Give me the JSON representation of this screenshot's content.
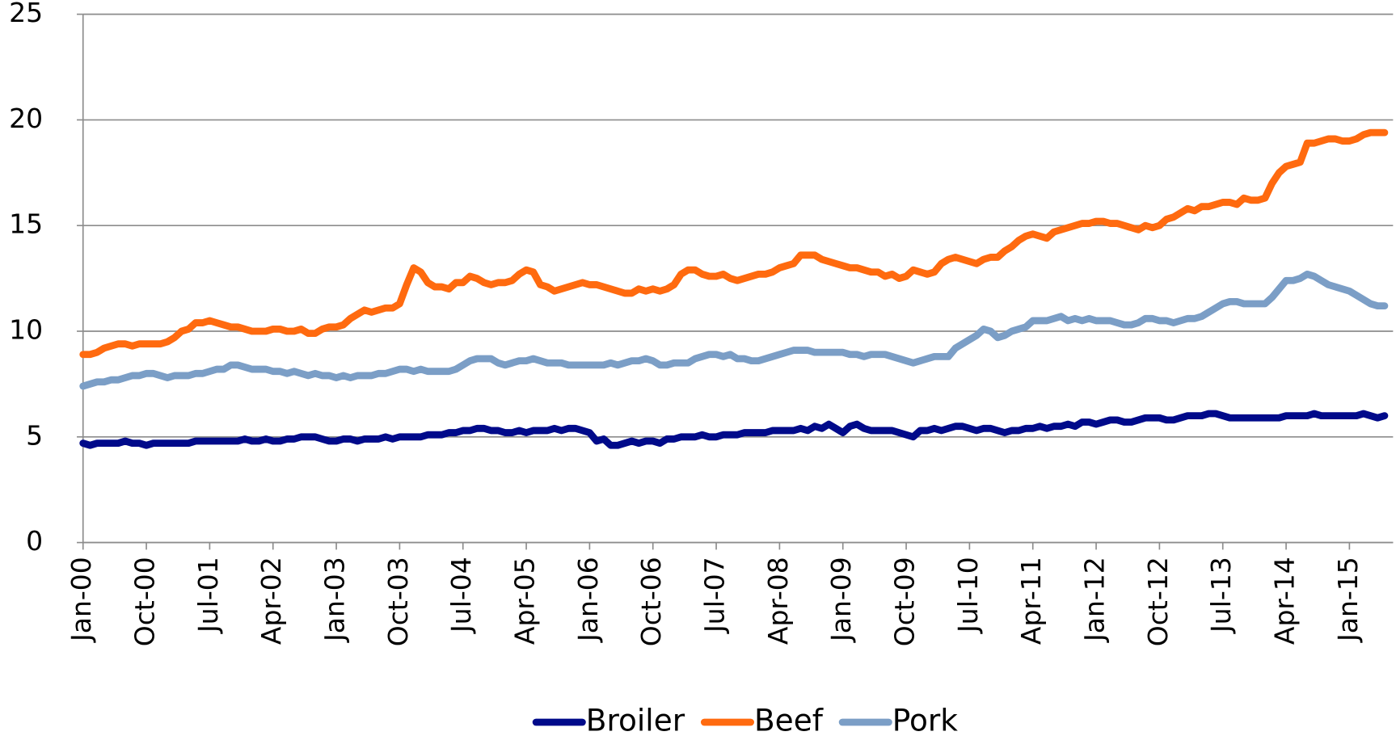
{
  "chart_data": {
    "type": "line",
    "categories": [
      "Jan-00",
      null,
      null,
      null,
      null,
      null,
      null,
      null,
      null,
      "Oct-00",
      null,
      null,
      null,
      null,
      null,
      null,
      null,
      null,
      "Jul-01",
      null,
      null,
      null,
      null,
      null,
      null,
      null,
      null,
      "Apr-02",
      null,
      null,
      null,
      null,
      null,
      null,
      null,
      null,
      "Jan-03",
      null,
      null,
      null,
      null,
      null,
      null,
      null,
      null,
      "Oct-03",
      null,
      null,
      null,
      null,
      null,
      null,
      null,
      null,
      "Jul-04",
      null,
      null,
      null,
      null,
      null,
      null,
      null,
      null,
      "Apr-05",
      null,
      null,
      null,
      null,
      null,
      null,
      null,
      null,
      "Jan-06",
      null,
      null,
      null,
      null,
      null,
      null,
      null,
      null,
      "Oct-06",
      null,
      null,
      null,
      null,
      null,
      null,
      null,
      null,
      "Jul-07",
      null,
      null,
      null,
      null,
      null,
      null,
      null,
      null,
      "Apr-08",
      null,
      null,
      null,
      null,
      null,
      null,
      null,
      null,
      "Jan-09",
      null,
      null,
      null,
      null,
      null,
      null,
      null,
      null,
      "Oct-09",
      null,
      null,
      null,
      null,
      null,
      null,
      null,
      null,
      "Jul-10",
      null,
      null,
      null,
      null,
      null,
      null,
      null,
      null,
      "Apr-11",
      null,
      null,
      null,
      null,
      null,
      null,
      null,
      null,
      "Jan-12",
      null,
      null,
      null,
      null,
      null,
      null,
      null,
      null,
      "Oct-12",
      null,
      null,
      null,
      null,
      null,
      null,
      null,
      null,
      "Jul-13",
      null,
      null,
      null,
      null,
      null,
      null,
      null,
      null,
      "Apr-14",
      null,
      null,
      null,
      null,
      null,
      null,
      null,
      null,
      "Jan-15",
      null,
      null,
      null,
      null,
      null
    ],
    "series": [
      {
        "name": "Broiler",
        "color": "#000a8a",
        "values": [
          4.7,
          4.6,
          4.7,
          4.7,
          4.7,
          4.7,
          4.8,
          4.7,
          4.7,
          4.6,
          4.7,
          4.7,
          4.7,
          4.7,
          4.7,
          4.7,
          4.8,
          4.8,
          4.8,
          4.8,
          4.8,
          4.8,
          4.8,
          4.9,
          4.8,
          4.8,
          4.9,
          4.8,
          4.8,
          4.9,
          4.9,
          5.0,
          5.0,
          5.0,
          4.9,
          4.8,
          4.8,
          4.9,
          4.9,
          4.8,
          4.9,
          4.9,
          4.9,
          5.0,
          4.9,
          5.0,
          5.0,
          5.0,
          5.0,
          5.1,
          5.1,
          5.1,
          5.2,
          5.2,
          5.3,
          5.3,
          5.4,
          5.4,
          5.3,
          5.3,
          5.2,
          5.2,
          5.3,
          5.2,
          5.3,
          5.3,
          5.3,
          5.4,
          5.3,
          5.4,
          5.4,
          5.3,
          5.2,
          4.8,
          4.9,
          4.6,
          4.6,
          4.7,
          4.8,
          4.7,
          4.8,
          4.8,
          4.7,
          4.9,
          4.9,
          5.0,
          5.0,
          5.0,
          5.1,
          5.0,
          5.0,
          5.1,
          5.1,
          5.1,
          5.2,
          5.2,
          5.2,
          5.2,
          5.3,
          5.3,
          5.3,
          5.3,
          5.4,
          5.3,
          5.5,
          5.4,
          5.6,
          5.4,
          5.2,
          5.5,
          5.6,
          5.4,
          5.3,
          5.3,
          5.3,
          5.3,
          5.2,
          5.1,
          5.0,
          5.3,
          5.3,
          5.4,
          5.3,
          5.4,
          5.5,
          5.5,
          5.4,
          5.3,
          5.4,
          5.4,
          5.3,
          5.2,
          5.3,
          5.3,
          5.4,
          5.4,
          5.5,
          5.4,
          5.5,
          5.5,
          5.6,
          5.5,
          5.7,
          5.7,
          5.6,
          5.7,
          5.8,
          5.8,
          5.7,
          5.7,
          5.8,
          5.9,
          5.9,
          5.9,
          5.8,
          5.8,
          5.9,
          6.0,
          6.0,
          6.0,
          6.1,
          6.1,
          6.0,
          5.9,
          5.9,
          5.9,
          5.9,
          5.9,
          5.9,
          5.9,
          5.9,
          6.0,
          6.0,
          6.0,
          6.0,
          6.1,
          6.0,
          6.0,
          6.0,
          6.0,
          6.0,
          6.0,
          6.1,
          6.0,
          5.9,
          6.0
        ]
      },
      {
        "name": "Beef",
        "color": "#ff6a0f",
        "values": [
          8.9,
          8.9,
          9.0,
          9.2,
          9.3,
          9.4,
          9.4,
          9.3,
          9.4,
          9.4,
          9.4,
          9.4,
          9.5,
          9.7,
          10.0,
          10.1,
          10.4,
          10.4,
          10.5,
          10.4,
          10.3,
          10.2,
          10.2,
          10.1,
          10.0,
          10.0,
          10.0,
          10.1,
          10.1,
          10.0,
          10.0,
          10.1,
          9.9,
          9.9,
          10.1,
          10.2,
          10.2,
          10.3,
          10.6,
          10.8,
          11.0,
          10.9,
          11.0,
          11.1,
          11.1,
          11.3,
          12.2,
          13.0,
          12.8,
          12.3,
          12.1,
          12.1,
          12.0,
          12.3,
          12.3,
          12.6,
          12.5,
          12.3,
          12.2,
          12.3,
          12.3,
          12.4,
          12.7,
          12.9,
          12.8,
          12.2,
          12.1,
          11.9,
          12.0,
          12.1,
          12.2,
          12.3,
          12.2,
          12.2,
          12.1,
          12.0,
          11.9,
          11.8,
          11.8,
          12.0,
          11.9,
          12.0,
          11.9,
          12.0,
          12.2,
          12.7,
          12.9,
          12.9,
          12.7,
          12.6,
          12.6,
          12.7,
          12.5,
          12.4,
          12.5,
          12.6,
          12.7,
          12.7,
          12.8,
          13.0,
          13.1,
          13.2,
          13.6,
          13.6,
          13.6,
          13.4,
          13.3,
          13.2,
          13.1,
          13.0,
          13.0,
          12.9,
          12.8,
          12.8,
          12.6,
          12.7,
          12.5,
          12.6,
          12.9,
          12.8,
          12.7,
          12.8,
          13.2,
          13.4,
          13.5,
          13.4,
          13.3,
          13.2,
          13.4,
          13.5,
          13.5,
          13.8,
          14.0,
          14.3,
          14.5,
          14.6,
          14.5,
          14.4,
          14.7,
          14.8,
          14.9,
          15.0,
          15.1,
          15.1,
          15.2,
          15.2,
          15.1,
          15.1,
          15.0,
          14.9,
          14.8,
          15.0,
          14.9,
          15.0,
          15.3,
          15.4,
          15.6,
          15.8,
          15.7,
          15.9,
          15.9,
          16.0,
          16.1,
          16.1,
          16.0,
          16.3,
          16.2,
          16.2,
          16.3,
          17.0,
          17.5,
          17.8,
          17.9,
          18.0,
          18.9,
          18.9,
          19.0,
          19.1,
          19.1,
          19.0,
          19.0,
          19.1,
          19.3,
          19.4,
          19.4,
          19.4
        ]
      },
      {
        "name": "Pork",
        "color": "#7b9ec6",
        "values": [
          7.4,
          7.5,
          7.6,
          7.6,
          7.7,
          7.7,
          7.8,
          7.9,
          7.9,
          8.0,
          8.0,
          7.9,
          7.8,
          7.9,
          7.9,
          7.9,
          8.0,
          8.0,
          8.1,
          8.2,
          8.2,
          8.4,
          8.4,
          8.3,
          8.2,
          8.2,
          8.2,
          8.1,
          8.1,
          8.0,
          8.1,
          8.0,
          7.9,
          8.0,
          7.9,
          7.9,
          7.8,
          7.9,
          7.8,
          7.9,
          7.9,
          7.9,
          8.0,
          8.0,
          8.1,
          8.2,
          8.2,
          8.1,
          8.2,
          8.1,
          8.1,
          8.1,
          8.1,
          8.2,
          8.4,
          8.6,
          8.7,
          8.7,
          8.7,
          8.5,
          8.4,
          8.5,
          8.6,
          8.6,
          8.7,
          8.6,
          8.5,
          8.5,
          8.5,
          8.4,
          8.4,
          8.4,
          8.4,
          8.4,
          8.4,
          8.5,
          8.4,
          8.5,
          8.6,
          8.6,
          8.7,
          8.6,
          8.4,
          8.4,
          8.5,
          8.5,
          8.5,
          8.7,
          8.8,
          8.9,
          8.9,
          8.8,
          8.9,
          8.7,
          8.7,
          8.6,
          8.6,
          8.7,
          8.8,
          8.9,
          9.0,
          9.1,
          9.1,
          9.1,
          9.0,
          9.0,
          9.0,
          9.0,
          9.0,
          8.9,
          8.9,
          8.8,
          8.9,
          8.9,
          8.9,
          8.8,
          8.7,
          8.6,
          8.5,
          8.6,
          8.7,
          8.8,
          8.8,
          8.8,
          9.2,
          9.4,
          9.6,
          9.8,
          10.1,
          10.0,
          9.7,
          9.8,
          10.0,
          10.1,
          10.2,
          10.5,
          10.5,
          10.5,
          10.6,
          10.7,
          10.5,
          10.6,
          10.5,
          10.6,
          10.5,
          10.5,
          10.5,
          10.4,
          10.3,
          10.3,
          10.4,
          10.6,
          10.6,
          10.5,
          10.5,
          10.4,
          10.5,
          10.6,
          10.6,
          10.7,
          10.9,
          11.1,
          11.3,
          11.4,
          11.4,
          11.3,
          11.3,
          11.3,
          11.3,
          11.6,
          12.0,
          12.4,
          12.4,
          12.5,
          12.7,
          12.6,
          12.4,
          12.2,
          12.1,
          12.0,
          11.9,
          11.7,
          11.5,
          11.3,
          11.2,
          11.2
        ]
      }
    ],
    "ylim": [
      0,
      25
    ],
    "yticks": [
      0,
      5,
      10,
      15,
      20,
      25
    ],
    "grid": true,
    "legend": "bottom"
  }
}
